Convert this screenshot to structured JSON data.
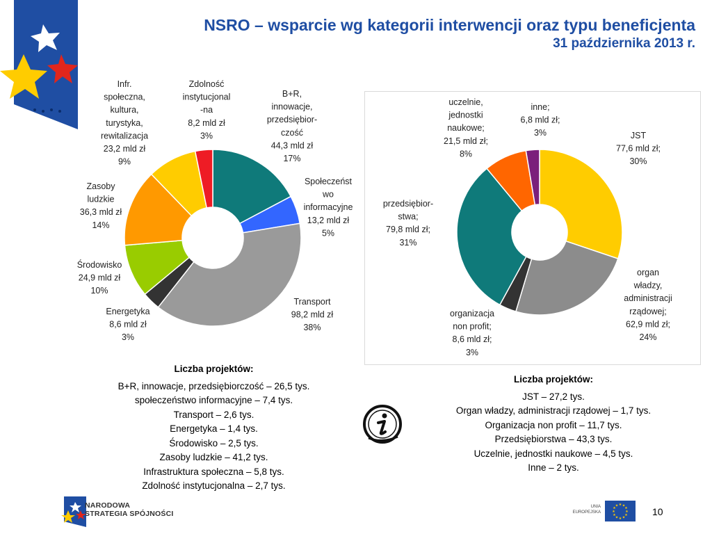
{
  "header": {
    "title": "NSRO – wsparcie wg kategorii interwencji oraz typu beneficjenta",
    "subtitle": "31 października 2013 r."
  },
  "chart_data": [
    {
      "type": "pie",
      "variant": "donut",
      "title": "",
      "slices": [
        {
          "name": "B+R, innowacje, przedsiębiorczość",
          "value": 44.3,
          "percent": 17,
          "color": "#0f7a7a",
          "label": [
            "B+R,",
            "innowacje,",
            "przedsiębior-",
            "czość",
            "44,3 mld zł",
            "17%"
          ]
        },
        {
          "name": "Społeczeństwo informacyjne",
          "value": 13.2,
          "percent": 5,
          "color": "#3366ff",
          "label": [
            "Społeczeńst",
            "wo",
            "informacyjne",
            "13,2 mld zł",
            "5%"
          ]
        },
        {
          "name": "Transport",
          "value": 98.2,
          "percent": 38,
          "color": "#9a9a9a",
          "label": [
            "Transport",
            "98,2 mld zł",
            "38%"
          ]
        },
        {
          "name": "Energetyka",
          "value": 8.6,
          "percent": 3,
          "color": "#333333",
          "label": [
            "Energetyka",
            "8,6 mld zł",
            "3%"
          ]
        },
        {
          "name": "Środowisko",
          "value": 24.9,
          "percent": 10,
          "color": "#99cc00",
          "label": [
            "Środowisko",
            "24,9 mld zł",
            "10%"
          ]
        },
        {
          "name": "Zasoby ludzkie",
          "value": 36.3,
          "percent": 14,
          "color": "#ff9900",
          "label": [
            "Zasoby",
            "ludzkie",
            "36,3 mld zł",
            "14%"
          ]
        },
        {
          "name": "Infr. społeczna, kultura, turystyka, rewitalizacja",
          "value": 23.2,
          "percent": 9,
          "color": "#ffcc00",
          "label": [
            "Infr.",
            "społeczna,",
            "kultura,",
            "turystyka,",
            "rewitalizacja",
            "23,2 mld zł",
            "9%"
          ]
        },
        {
          "name": "Zdolność instytucjonalna",
          "value": 8.2,
          "percent": 3,
          "color": "#ee1c25",
          "label": [
            "Zdolność",
            "instytucjonal",
            "-na",
            "8,2 mld zł",
            "3%"
          ]
        }
      ]
    },
    {
      "type": "pie",
      "variant": "donut",
      "title": "",
      "slices": [
        {
          "name": "JST",
          "value": 77.6,
          "percent": 30,
          "color": "#ffcc00",
          "label": [
            "JST",
            "77,6 mld zł;",
            "30%"
          ]
        },
        {
          "name": "organ władzy, administracji rządowej",
          "value": 62.9,
          "percent": 24,
          "color": "#8c8c8c",
          "label": [
            "organ",
            "władzy,",
            "administracji",
            "rządowej;",
            "62,9 mld zł;",
            "24%"
          ]
        },
        {
          "name": "organizacja non profit",
          "value": 8.6,
          "percent": 3,
          "color": "#333333",
          "label": [
            "organizacja",
            "non profit;",
            "8,6 mld zł;",
            "3%"
          ]
        },
        {
          "name": "przedsiębiorstwa",
          "value": 79.8,
          "percent": 31,
          "color": "#0f7a7a",
          "label": [
            "przedsiębior-",
            "stwa;",
            "79,8 mld zł;",
            "31%"
          ]
        },
        {
          "name": "uczelnie, jednostki naukowe",
          "value": 21.5,
          "percent": 8,
          "color": "#ff6600",
          "label": [
            "uczelnie,",
            "jednostki",
            "naukowe;",
            "21,5 mld zł;",
            "8%"
          ]
        },
        {
          "name": "inne",
          "value": 6.8,
          "percent": 3,
          "color": "#7b1f7b",
          "label": [
            "inne;",
            "6,8 mld zł;",
            "3%"
          ]
        }
      ]
    }
  ],
  "projects_left": {
    "heading": "Liczba projektów:",
    "items": [
      "B+R, innowacje, przedsiębiorczość – 26,5 tys.",
      "społeczeństwo informacyjne – 7,4 tys.",
      "Transport – 2,6 tys.",
      "Energetyka – 1,4 tys.",
      "Środowisko – 2,5 tys.",
      "Zasoby ludzkie – 41,2 tys.",
      "Infrastruktura społeczna – 5,8 tys.",
      "Zdolność instytucjonalna – 2,7 tys."
    ]
  },
  "projects_right": {
    "heading": "Liczba projektów:",
    "items": [
      "JST – 27,2 tys.",
      "Organ władzy, administracji rządowej – 1,7 tys.",
      "Organizacja non profit – 11,7 tys.",
      "Przedsiębiorstwa – 43,3 tys.",
      "Uczelnie, jednostki naukowe – 4,5 tys.",
      "Inne – 2 tys."
    ]
  },
  "footer": {
    "logo_text_line1": "NARODOWA",
    "logo_text_line2": "STRATEGIA SPÓJNOŚCI",
    "eu_text_line1": "UNIA",
    "eu_text_line2": "EUROPEJSKA",
    "page_number": "10"
  },
  "icons": {
    "info": "info-icon",
    "logo": "nss-star-logo-icon",
    "eu_flag": "eu-flag-icon"
  }
}
